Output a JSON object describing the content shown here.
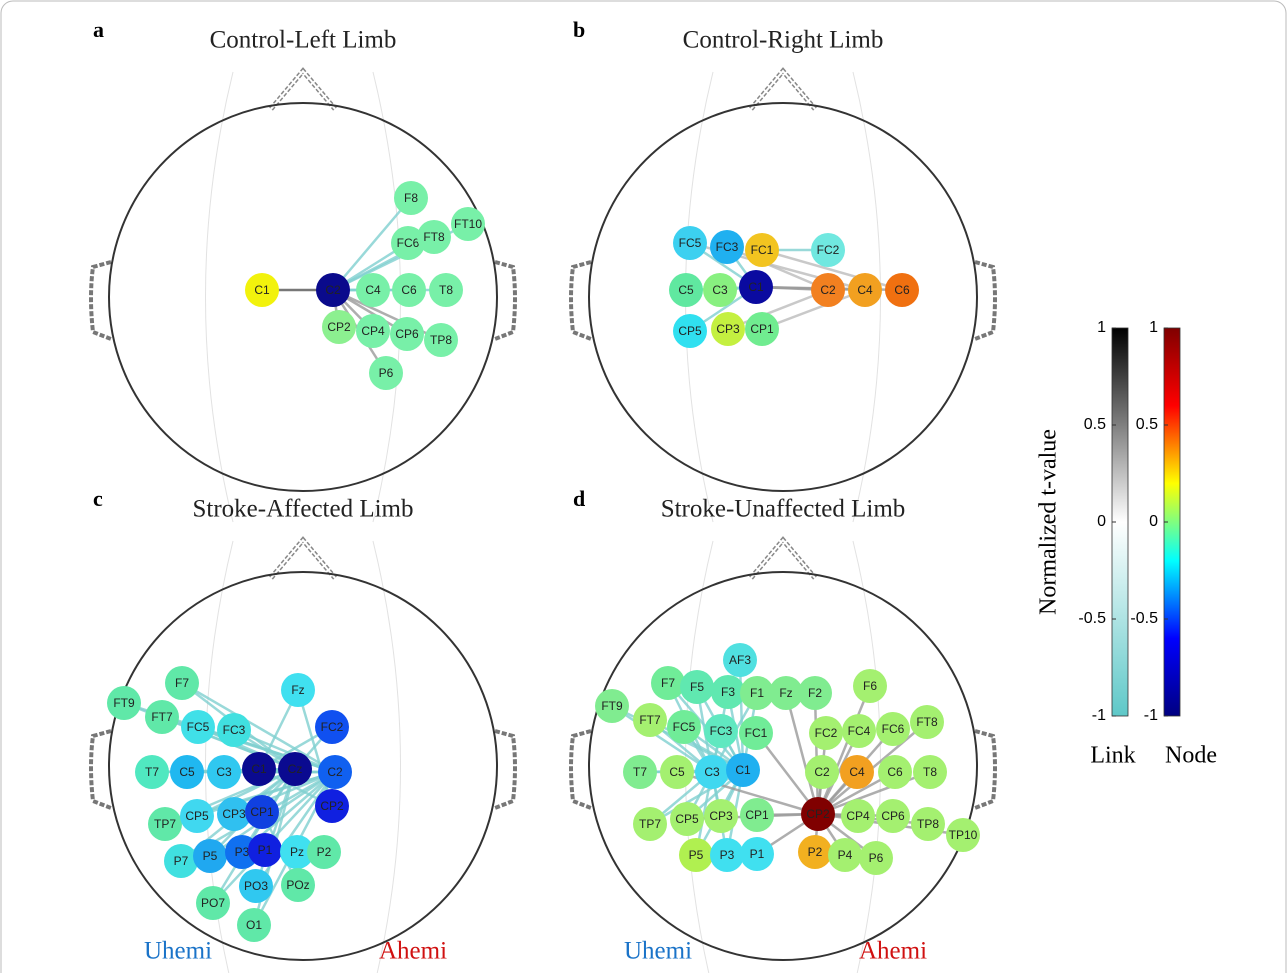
{
  "panels": [
    {
      "letter": "a",
      "title": "Control-Left Limb",
      "nodes": [
        {
          "label": "C1",
          "color": "#f2f20c"
        },
        {
          "label": "C2",
          "color": "#0a0a8c"
        },
        {
          "label": "C4",
          "color": "#78f0a8"
        },
        {
          "label": "C6",
          "color": "#78f0a8"
        },
        {
          "label": "T8",
          "color": "#78f0a8"
        },
        {
          "label": "F8",
          "color": "#78f0a8"
        },
        {
          "label": "FC6",
          "color": "#78f0a8"
        },
        {
          "label": "FT8",
          "color": "#78f0a8"
        },
        {
          "label": "FT10",
          "color": "#78f0a8"
        },
        {
          "label": "CP2",
          "color": "#8cf090"
        },
        {
          "label": "CP4",
          "color": "#78f0a8"
        },
        {
          "label": "CP6",
          "color": "#78f0a8"
        },
        {
          "label": "TP8",
          "color": "#78f0a8"
        },
        {
          "label": "P6",
          "color": "#78f0a8"
        }
      ]
    },
    {
      "letter": "b",
      "title": "Control-Right Limb",
      "nodes": [
        {
          "label": "FC5",
          "color": "#3cd0f0"
        },
        {
          "label": "FC3",
          "color": "#20b0f0"
        },
        {
          "label": "FC1",
          "color": "#f2c420"
        },
        {
          "label": "FC2",
          "color": "#70e8e0"
        },
        {
          "label": "C5",
          "color": "#60e8a0"
        },
        {
          "label": "C3",
          "color": "#88f080"
        },
        {
          "label": "C1",
          "color": "#0a0aa0"
        },
        {
          "label": "C2",
          "color": "#f28020"
        },
        {
          "label": "C4",
          "color": "#f2a020"
        },
        {
          "label": "C6",
          "color": "#f07010"
        },
        {
          "label": "CP5",
          "color": "#30e0f0"
        },
        {
          "label": "CP3",
          "color": "#c4f040"
        },
        {
          "label": "CP1",
          "color": "#70ec90"
        }
      ]
    },
    {
      "letter": "c",
      "title": "Stroke-Affected Limb",
      "left_label": "Uhemi",
      "right_label": "Ahemi",
      "nodes": [
        {
          "label": "F7",
          "color": "#60e8a8"
        },
        {
          "label": "Fz",
          "color": "#40e0f0"
        },
        {
          "label": "FT9",
          "color": "#60e8a8"
        },
        {
          "label": "FT7",
          "color": "#60e8a8"
        },
        {
          "label": "FC5",
          "color": "#40e0e8"
        },
        {
          "label": "FC3",
          "color": "#40e0e0"
        },
        {
          "label": "FC2",
          "color": "#1050f0"
        },
        {
          "label": "T7",
          "color": "#50e8c0"
        },
        {
          "label": "C5",
          "color": "#20b8f0"
        },
        {
          "label": "C3",
          "color": "#30c8f0"
        },
        {
          "label": "C1",
          "color": "#0a0a90"
        },
        {
          "label": "Cz",
          "color": "#0a0a90"
        },
        {
          "label": "C2",
          "color": "#1060f0"
        },
        {
          "label": "CP2",
          "color": "#1020e0"
        },
        {
          "label": "TP7",
          "color": "#60e8a8"
        },
        {
          "label": "CP5",
          "color": "#40d8f0"
        },
        {
          "label": "CP3",
          "color": "#30c0f0"
        },
        {
          "label": "CP1",
          "color": "#1040e0"
        },
        {
          "label": "P7",
          "color": "#40e0e0"
        },
        {
          "label": "P5",
          "color": "#20a8f0"
        },
        {
          "label": "P3",
          "color": "#1070f0"
        },
        {
          "label": "P1",
          "color": "#1020e0"
        },
        {
          "label": "Pz",
          "color": "#40e0f0"
        },
        {
          "label": "P2",
          "color": "#60e8a8"
        },
        {
          "label": "PO3",
          "color": "#30c8f0"
        },
        {
          "label": "POz",
          "color": "#60e8a8"
        },
        {
          "label": "PO7",
          "color": "#60e8a8"
        },
        {
          "label": "O1",
          "color": "#60e8a8"
        }
      ]
    },
    {
      "letter": "d",
      "title": "Stroke-Unaffected Limb",
      "left_label": "Uhemi",
      "right_label": "Ahemi",
      "nodes": [
        {
          "label": "AF3",
          "color": "#50e0e0"
        },
        {
          "label": "F7",
          "color": "#70ec98"
        },
        {
          "label": "F5",
          "color": "#60e8b0"
        },
        {
          "label": "F3",
          "color": "#60e8b0"
        },
        {
          "label": "F1",
          "color": "#80ec90"
        },
        {
          "label": "Fz",
          "color": "#80ec90"
        },
        {
          "label": "F2",
          "color": "#80ec90"
        },
        {
          "label": "F6",
          "color": "#a4f070"
        },
        {
          "label": "FT9",
          "color": "#80ec90"
        },
        {
          "label": "FT7",
          "color": "#a4f070"
        },
        {
          "label": "FC5",
          "color": "#70ec98"
        },
        {
          "label": "FC3",
          "color": "#60e8c0"
        },
        {
          "label": "FC1",
          "color": "#70ec98"
        },
        {
          "label": "FC2",
          "color": "#a4f070"
        },
        {
          "label": "FC4",
          "color": "#a4f070"
        },
        {
          "label": "FC6",
          "color": "#a4f070"
        },
        {
          "label": "FT8",
          "color": "#a4f070"
        },
        {
          "label": "T7",
          "color": "#80ec90"
        },
        {
          "label": "C5",
          "color": "#a4f070"
        },
        {
          "label": "C3",
          "color": "#40d8f0"
        },
        {
          "label": "C1",
          "color": "#20b0f0"
        },
        {
          "label": "C2",
          "color": "#a4f070"
        },
        {
          "label": "C4",
          "color": "#f2a020"
        },
        {
          "label": "C6",
          "color": "#a4f070"
        },
        {
          "label": "T8",
          "color": "#a4f070"
        },
        {
          "label": "TP7",
          "color": "#a4f070"
        },
        {
          "label": "CP5",
          "color": "#a4f070"
        },
        {
          "label": "CP3",
          "color": "#a4f070"
        },
        {
          "label": "CP1",
          "color": "#80ec90"
        },
        {
          "label": "CP2",
          "color": "#800000"
        },
        {
          "label": "CP4",
          "color": "#a4f070"
        },
        {
          "label": "CP6",
          "color": "#a4f070"
        },
        {
          "label": "TP8",
          "color": "#a4f070"
        },
        {
          "label": "TP10",
          "color": "#a4f070"
        },
        {
          "label": "P5",
          "color": "#b0f050"
        },
        {
          "label": "P3",
          "color": "#40e0f0"
        },
        {
          "label": "P1",
          "color": "#40e0f0"
        },
        {
          "label": "P2",
          "color": "#f2b020"
        },
        {
          "label": "P4",
          "color": "#a4f070"
        },
        {
          "label": "P6",
          "color": "#a4f070"
        }
      ]
    }
  ],
  "colorbar": {
    "ylabel": "Normalized t-value",
    "ylim": [
      -1,
      1
    ],
    "yticks": [
      1,
      0.5,
      0,
      -0.5,
      -1
    ],
    "bars": [
      {
        "label": "Link",
        "colors": [
          "#000000",
          "#ffffff",
          "#5ec8c8"
        ]
      },
      {
        "label": "Node",
        "colors": [
          "#800000",
          "#ff0000",
          "#ffff00",
          "#00ffff",
          "#0000ff",
          "#000080"
        ]
      }
    ]
  }
}
